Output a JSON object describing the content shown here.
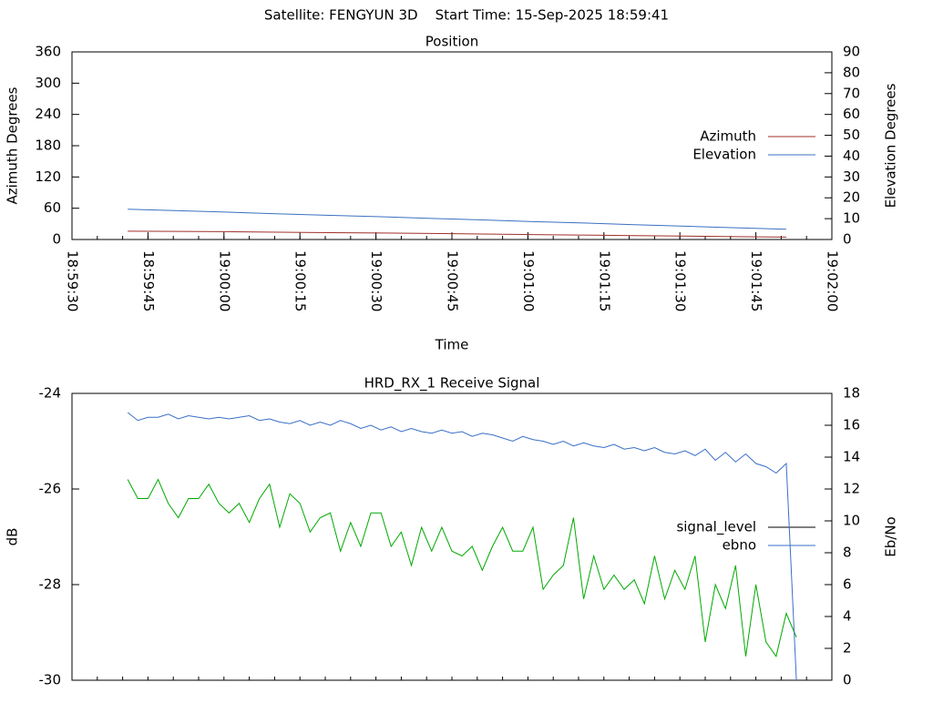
{
  "title": "Satellite: FENGYUN 3D    Start Time: 15-Sep-2025 18:59:41",
  "chart_data": [
    {
      "type": "line",
      "title": "Position",
      "xlabel": "Time",
      "ylabel": "Azimuth Degrees",
      "y2label": "Elevation Degrees",
      "x": [
        "18:59:41",
        "18:59:51",
        "19:00:01",
        "19:00:11",
        "19:00:21",
        "19:00:31",
        "19:00:41",
        "19:00:51",
        "19:01:01",
        "19:01:11",
        "19:01:21",
        "19:01:31",
        "19:01:41",
        "19:01:51"
      ],
      "xlim": [
        "18:59:30",
        "19:02:00"
      ],
      "xticks": [
        "18:59:30",
        "18:59:45",
        "19:00:00",
        "19:00:15",
        "19:00:30",
        "19:00:45",
        "19:01:00",
        "19:01:15",
        "19:01:30",
        "19:01:45",
        "19:02:00"
      ],
      "ylim": [
        0,
        360
      ],
      "yticks": [
        0,
        60,
        120,
        180,
        240,
        300,
        360
      ],
      "y2lim": [
        0,
        90
      ],
      "y2ticks": [
        0,
        10,
        20,
        30,
        40,
        50,
        60,
        70,
        80,
        90
      ],
      "legend": "right",
      "grid": false,
      "series": [
        {
          "name": "Azimuth",
          "color": "#a0302a",
          "values": [
            16,
            15.5,
            15,
            14,
            13,
            12.5,
            11.5,
            10.5,
            9.5,
            8.5,
            7.5,
            6.5,
            5.5,
            4.5
          ]
        },
        {
          "name": "Elevation",
          "color": "#3a70c0",
          "axis": "y2",
          "values": [
            14.5,
            13.8,
            13.1,
            12.3,
            11.6,
            10.9,
            10.1,
            9.4,
            8.6,
            7.9,
            7.1,
            6.4,
            5.6,
            4.9
          ]
        }
      ]
    },
    {
      "type": "line",
      "title": "HRD_RX_1 Receive Signal",
      "ylabel": "dB",
      "y2label": "Eb/No",
      "x": [
        "18:59:41",
        "18:59:43",
        "18:59:45",
        "18:59:47",
        "18:59:49",
        "18:59:51",
        "18:59:53",
        "18:59:55",
        "18:59:57",
        "18:59:59",
        "19:00:01",
        "19:00:03",
        "19:00:05",
        "19:00:07",
        "19:00:09",
        "19:00:11",
        "19:00:13",
        "19:00:15",
        "19:00:17",
        "19:00:19",
        "19:00:21",
        "19:00:23",
        "19:00:25",
        "19:00:27",
        "19:00:29",
        "19:00:31",
        "19:00:33",
        "19:00:35",
        "19:00:37",
        "19:00:39",
        "19:00:41",
        "19:00:43",
        "19:00:45",
        "19:00:47",
        "19:00:49",
        "19:00:51",
        "19:00:53",
        "19:00:55",
        "19:00:57",
        "19:00:59",
        "19:01:01",
        "19:01:03",
        "19:01:05",
        "19:01:07",
        "19:01:09",
        "19:01:11",
        "19:01:13",
        "19:01:15",
        "19:01:17",
        "19:01:19",
        "19:01:21",
        "19:01:23",
        "19:01:25",
        "19:01:27",
        "19:01:29",
        "19:01:31",
        "19:01:33",
        "19:01:35",
        "19:01:37",
        "19:01:39",
        "19:01:41",
        "19:01:43",
        "19:01:45",
        "19:01:47",
        "19:01:49",
        "19:01:51",
        "19:01:53"
      ],
      "xlim": [
        "18:59:30",
        "19:02:00"
      ],
      "ylim": [
        -30,
        -24
      ],
      "yticks": [
        -30,
        -28,
        -26,
        -24
      ],
      "y2lim": [
        0,
        18
      ],
      "y2ticks": [
        0,
        2,
        4,
        6,
        8,
        10,
        12,
        14,
        16,
        18
      ],
      "legend": "right",
      "grid": false,
      "series": [
        {
          "name": "signal_level",
          "color": "#00aa00",
          "legend_color": "#000000",
          "values": [
            -25.8,
            -26.2,
            -26.2,
            -25.8,
            -26.3,
            -26.6,
            -26.2,
            -26.2,
            -25.9,
            -26.3,
            -26.5,
            -26.3,
            -26.7,
            -26.2,
            -25.9,
            -26.8,
            -26.1,
            -26.3,
            -26.9,
            -26.6,
            -26.5,
            -27.3,
            -26.7,
            -27.2,
            -26.5,
            -26.5,
            -27.2,
            -26.9,
            -27.6,
            -26.8,
            -27.3,
            -26.8,
            -27.3,
            -27.4,
            -27.2,
            -27.7,
            -27.2,
            -26.8,
            -27.3,
            -27.3,
            -26.8,
            -28.1,
            -27.8,
            -27.6,
            -26.6,
            -28.3,
            -27.4,
            -28.1,
            -27.8,
            -28.1,
            -27.9,
            -28.4,
            -27.4,
            -28.3,
            -27.7,
            -28.1,
            -27.4,
            -29.2,
            -28.0,
            -28.5,
            -27.6,
            -29.5,
            -28.0,
            -29.2,
            -29.5,
            -28.6,
            -29.1
          ]
        },
        {
          "name": "ebno",
          "color": "#3a6fc8",
          "axis": "y2",
          "values": [
            16.8,
            16.3,
            16.5,
            16.5,
            16.7,
            16.4,
            16.6,
            16.5,
            16.4,
            16.5,
            16.4,
            16.5,
            16.6,
            16.3,
            16.4,
            16.2,
            16.1,
            16.3,
            16.0,
            16.2,
            16.0,
            16.3,
            16.1,
            15.8,
            16.0,
            15.7,
            15.9,
            15.6,
            15.8,
            15.6,
            15.5,
            15.7,
            15.5,
            15.6,
            15.3,
            15.5,
            15.4,
            15.2,
            15.0,
            15.3,
            15.1,
            15.0,
            14.8,
            15.0,
            14.7,
            14.9,
            14.7,
            14.6,
            14.8,
            14.5,
            14.6,
            14.4,
            14.6,
            14.3,
            14.2,
            14.4,
            14.1,
            14.5,
            13.8,
            14.3,
            13.7,
            14.2,
            13.6,
            13.4,
            13.0,
            13.6,
            0
          ]
        }
      ]
    }
  ]
}
